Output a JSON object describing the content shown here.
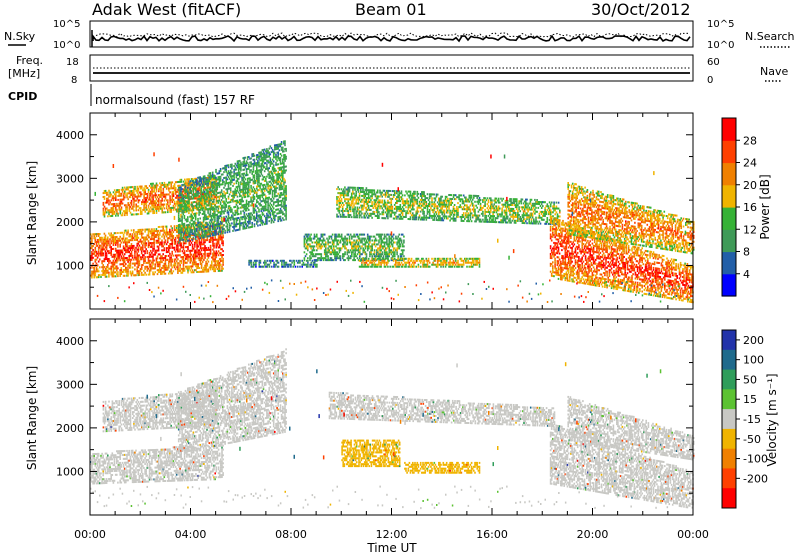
{
  "header": {
    "station": "Adak West (fitACF)",
    "beam": "Beam 01",
    "date": "30/Oct/2012"
  },
  "top_panels": {
    "nsky_label": "N.Sky",
    "nsky_ticks": [
      "10^5",
      "10^0"
    ],
    "nsearch_label": "N.Search",
    "nsearch_ticks": [
      "10^5",
      "10^0"
    ],
    "freq_label": "Freq.",
    "freq_unit": "[MHz]",
    "freq_ticks": [
      "18",
      "8"
    ],
    "nave_label": "Nave",
    "nave_ticks": [
      "60",
      "0"
    ],
    "cpid_label": "CPID",
    "cpid_text": "normalsound (fast) 157 RF"
  },
  "power_panel": {
    "ylabel": "Slant Range [km]",
    "yticks": [
      "4000",
      "3000",
      "2000",
      "1000"
    ],
    "colorbar_label": "Power [dB]",
    "colorbar_ticks": [
      "28",
      "24",
      "20",
      "16",
      "12",
      "8",
      "4"
    ],
    "colors": [
      "#0000ff",
      "#225fa8",
      "#3f9a58",
      "#36b236",
      "#f0b400",
      "#f08000",
      "#ff4000",
      "#ff0000"
    ]
  },
  "velocity_panel": {
    "ylabel": "Slant Range [km]",
    "yticks": [
      "4000",
      "3000",
      "2000",
      "1000"
    ],
    "colorbar_label": "Velocity [m s⁻¹]",
    "colorbar_ticks": [
      "200",
      "100",
      "50",
      "15",
      "-15",
      "-50",
      "-100",
      "-200"
    ],
    "colors": [
      "#2233aa",
      "#1f6a8c",
      "#2f9d5a",
      "#5cc232",
      "#c8c8c4",
      "#f0b400",
      "#f08000",
      "#ff4000",
      "#ff0000"
    ]
  },
  "x_axis": {
    "ticks": [
      "00:00",
      "04:00",
      "08:00",
      "12:00",
      "16:00",
      "20:00",
      "00:00"
    ],
    "label": "Time UT"
  },
  "chart_data": {
    "type": "heatmap",
    "title": "Adak West (fitACF)",
    "subtitle": "Beam 01",
    "date": "30/Oct/2012",
    "x_unit": "hours UT",
    "xlim": [
      0,
      24
    ],
    "xticks": [
      0,
      4,
      8,
      12,
      16,
      20,
      24
    ],
    "ylim": [
      0,
      4500
    ],
    "yticks": [
      1000,
      2000,
      3000,
      4000
    ],
    "xlabel": "Time UT",
    "ylabel": "Slant Range [km]",
    "panels": [
      {
        "name": "Power",
        "unit": "dB",
        "colorbar_range": [
          0,
          30
        ],
        "colorbar_ticks": [
          4,
          8,
          12,
          16,
          20,
          24,
          28
        ],
        "features": [
          {
            "t_start": 0.0,
            "t_end": 5.3,
            "r_start": 700,
            "r_mid": 1300,
            "r_end": 1700,
            "slope": 60,
            "level": 27
          },
          {
            "t_start": 0.5,
            "t_end": 5.0,
            "r_start": 2100,
            "r_mid": 2300,
            "r_end": 2700,
            "slope": 80,
            "level": 24
          },
          {
            "t_start": 3.5,
            "t_end": 7.8,
            "r_start": 1500,
            "r_mid": 2200,
            "r_end": 2800,
            "slope": 250,
            "level": 13
          },
          {
            "t_start": 6.3,
            "t_end": 9.0,
            "r_start": 950,
            "r_mid": 1000,
            "r_end": 1100,
            "slope": 0,
            "level": 10
          },
          {
            "t_start": 8.5,
            "t_end": 12.5,
            "r_start": 1100,
            "r_mid": 1400,
            "r_end": 1700,
            "slope": 0,
            "level": 14
          },
          {
            "t_start": 10.7,
            "t_end": 15.5,
            "r_start": 950,
            "r_mid": 1050,
            "r_end": 1150,
            "slope": 0,
            "level": 20
          },
          {
            "t_start": 9.8,
            "t_end": 18.7,
            "r_start": 2100,
            "r_mid": 2400,
            "r_end": 2800,
            "slope": -40,
            "level": 16
          },
          {
            "t_start": 18.3,
            "t_end": 24.0,
            "r_start": 700,
            "r_mid": 1200,
            "r_end": 2100,
            "slope": -200,
            "level": 27
          },
          {
            "t_start": 19.0,
            "t_end": 24.0,
            "r_start": 1700,
            "r_mid": 2300,
            "r_end": 2900,
            "slope": -180,
            "level": 23
          }
        ]
      },
      {
        "name": "Velocity",
        "unit": "m s-1",
        "colorbar_range": [
          -250,
          250
        ],
        "colorbar_ticks": [
          200,
          100,
          50,
          15,
          -15,
          -50,
          -100,
          -200
        ],
        "features": [
          {
            "t_start": 0.0,
            "t_end": 5.3,
            "r_start": 700,
            "r_mid": 1100,
            "r_end": 1400,
            "slope": 40,
            "level": 0
          },
          {
            "t_start": 0.5,
            "t_end": 5.0,
            "r_start": 1900,
            "r_mid": 2200,
            "r_end": 2600,
            "slope": 60,
            "level": -10
          },
          {
            "t_start": 3.5,
            "t_end": 7.8,
            "r_start": 1400,
            "r_mid": 2000,
            "r_end": 2800,
            "slope": 230,
            "level": 0
          },
          {
            "t_start": 10.0,
            "t_end": 12.3,
            "r_start": 1100,
            "r_mid": 1350,
            "r_end": 1700,
            "slope": 0,
            "level": -60
          },
          {
            "t_start": 12.5,
            "t_end": 15.5,
            "r_start": 950,
            "r_mid": 1050,
            "r_end": 1200,
            "slope": 0,
            "level": -50
          },
          {
            "t_start": 9.5,
            "t_end": 18.5,
            "r_start": 2200,
            "r_mid": 2500,
            "r_end": 2800,
            "slope": -40,
            "level": 0
          },
          {
            "t_start": 18.3,
            "t_end": 24.0,
            "r_start": 700,
            "r_mid": 1100,
            "r_end": 2100,
            "slope": -200,
            "level": 0
          },
          {
            "t_start": 19.0,
            "t_end": 24.0,
            "r_start": 1700,
            "r_mid": 2200,
            "r_end": 2700,
            "slope": -180,
            "level": 0
          }
        ]
      }
    ]
  }
}
